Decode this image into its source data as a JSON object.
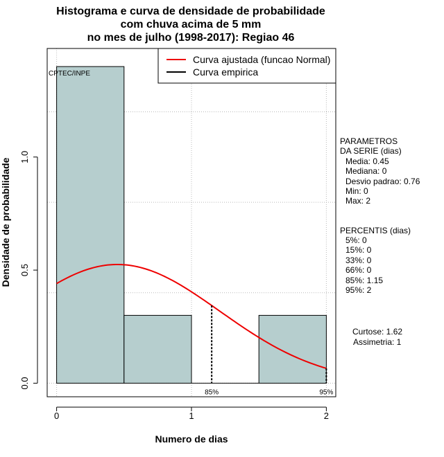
{
  "chart_data": {
    "type": "bar",
    "title_lines": [
      "Histograma e curva de densidade de probabilidade",
      "com chuva acima de 5 mm",
      "no mes de julho (1998-2017): Regiao 46"
    ],
    "xlabel": "Numero de dias",
    "ylabel": "Densidade de probabilidade",
    "xlim": [
      -0.07,
      2.07
    ],
    "ylim": [
      -0.06,
      1.48
    ],
    "xticks": [
      "0",
      "1",
      "2"
    ],
    "yticks": [
      "0.0",
      "0.5",
      "1.0"
    ],
    "grid": true,
    "bins": [
      {
        "from": 0.0,
        "to": 0.5,
        "density": 1.4
      },
      {
        "from": 0.5,
        "to": 1.0,
        "density": 0.3
      },
      {
        "from": 1.0,
        "to": 1.5,
        "density": 0.0
      },
      {
        "from": 1.5,
        "to": 2.0,
        "density": 0.3
      }
    ],
    "normal_fit": {
      "mean": 0.45,
      "sd": 0.76,
      "from": 0,
      "to": 2
    },
    "percentile_markers": [
      {
        "x": 1.15,
        "label": "85%"
      },
      {
        "x": 2.0,
        "label": "95%"
      }
    ],
    "legend": [
      {
        "label": "Curva ajustada (funcao Normal)",
        "color": "#ee0000"
      },
      {
        "label": "Curva empirica",
        "color": "#000000"
      }
    ],
    "legend_position": "top-right",
    "credit": "CPTEC/INPE",
    "colors": {
      "bars": "#b6cece",
      "curve": "#ee0000",
      "grid": "#b8b8b8"
    }
  },
  "side_panel": {
    "parametros": [
      "PARAMETROS",
      "DA SERIE (dias)",
      "Media: 0.45",
      "Mediana: 0",
      "Desvio padrao: 0.76",
      "Min: 0",
      "Max: 2"
    ],
    "percentis": [
      "PERCENTIS (dias)",
      "5%: 0",
      "15%: 0",
      "33%: 0",
      "66%: 0",
      "85%: 1.15",
      "95%: 2"
    ],
    "curtose": "Curtose: 1.62",
    "assimetria": "Assimetria: 1"
  }
}
